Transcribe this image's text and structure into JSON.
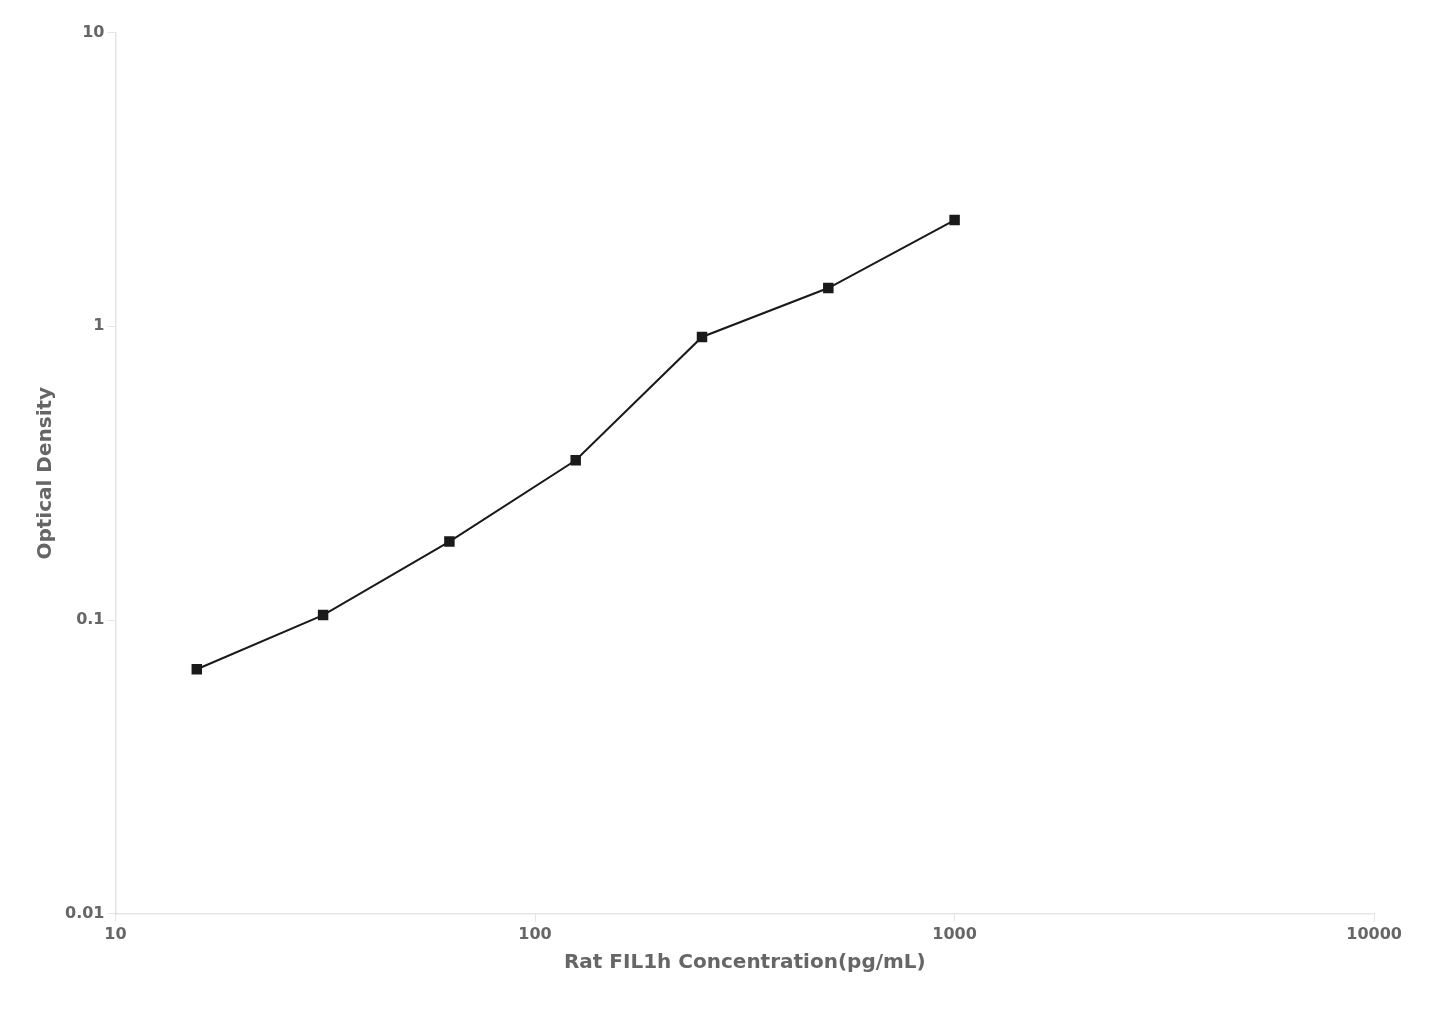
{
  "chart_data": {
    "type": "line",
    "x": [
      15.625,
      31.25,
      62.5,
      125,
      250,
      500,
      1000
    ],
    "values": [
      0.068,
      0.104,
      0.185,
      0.35,
      0.92,
      1.35,
      2.3
    ],
    "xlabel": "Rat FIL1h Concentration(pg/mL)",
    "ylabel": "Optical Density",
    "xlim": [
      10,
      10000
    ],
    "ylim": [
      0.01,
      10
    ],
    "xticks": [
      10,
      100,
      1000,
      10000
    ],
    "yticks": [
      0.01,
      0.1,
      1,
      10
    ],
    "log": true,
    "grid": false,
    "color": "#1a1a1a",
    "marker": "square",
    "line_style": "solid"
  }
}
